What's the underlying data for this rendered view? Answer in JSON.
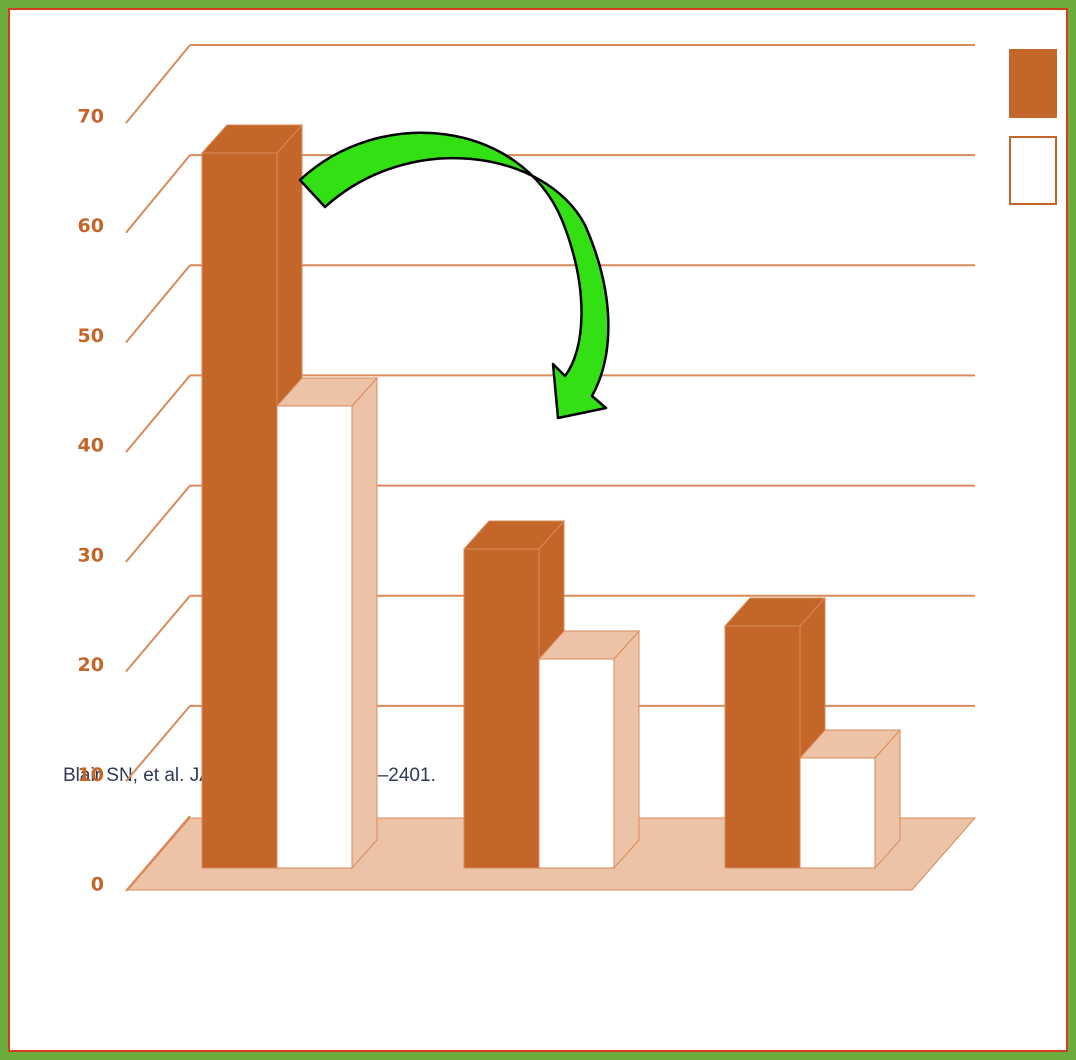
{
  "chart_data": {
    "type": "bar3d",
    "categories": [
      null,
      null,
      null
    ],
    "series": [
      {
        "color": "#c4652a",
        "values": [
          65,
          29,
          22
        ]
      },
      {
        "color": "#ffffff",
        "values": [
          42,
          19,
          10
        ]
      }
    ],
    "ylim": [
      0,
      70
    ],
    "yticks": [
      0,
      10,
      20,
      30,
      40,
      50,
      60,
      70
    ],
    "grid": true,
    "legend": "top-right",
    "source": "Blair SN, et al. JAMA. 1989;262:2395–2401."
  }
}
